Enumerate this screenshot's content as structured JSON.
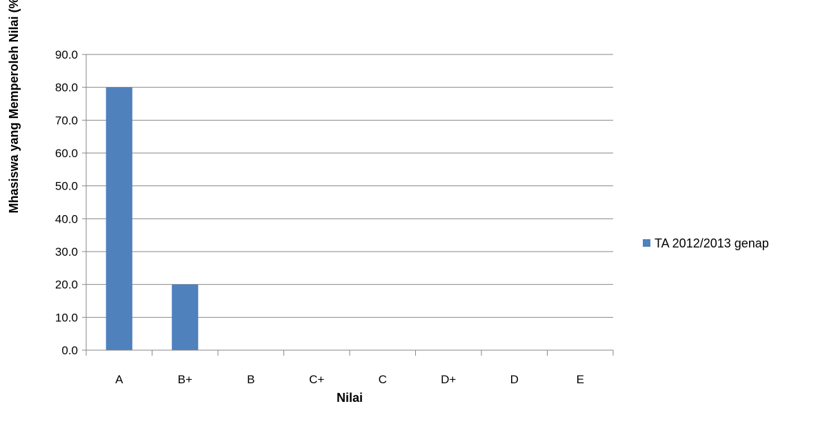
{
  "chart_data": {
    "type": "bar",
    "categories": [
      "A",
      "B+",
      "B",
      "C+",
      "C",
      "D+",
      "D",
      "E"
    ],
    "series": [
      {
        "name": "TA 2012/2013 genap",
        "values": [
          80.0,
          20.0,
          0,
          0,
          0,
          0,
          0,
          0
        ],
        "color": "#4F81BD"
      }
    ],
    "xlabel": "Nilai",
    "ylabel": "Mhasiswa yang Memperoleh Nilai (%)",
    "ylim": [
      0,
      90
    ],
    "ytick_step": 10,
    "yticks": [
      "0.0",
      "10.0",
      "20.0",
      "30.0",
      "40.0",
      "50.0",
      "60.0",
      "70.0",
      "80.0",
      "90.0"
    ],
    "grid": true,
    "gridline_color": "#868686",
    "legend_position": "right"
  }
}
